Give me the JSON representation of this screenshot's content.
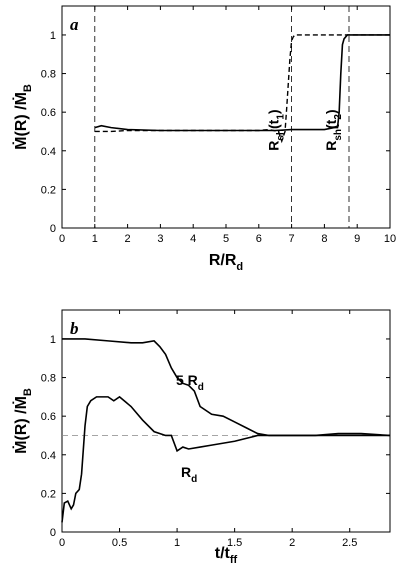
{
  "chart_data": [
    {
      "type": "line",
      "panel_label": "a",
      "xlabel": "R/R",
      "xlabel_sub": "d",
      "ylabel": "Ṁ(R) /Ṁ",
      "ylabel_sub": "B",
      "xlim": [
        0,
        10
      ],
      "ylim": [
        0,
        1.15
      ],
      "xticks": [
        "0",
        "1",
        "2",
        "3",
        "4",
        "5",
        "6",
        "7",
        "8",
        "9",
        "10"
      ],
      "yticks": [
        "0",
        "0.2",
        "0.4",
        "0.6",
        "0.8",
        "1"
      ],
      "series": [
        {
          "style": "solid",
          "x": [
            1.0,
            1.2,
            1.5,
            2.0,
            3.0,
            4.0,
            5.0,
            6.0,
            6.5,
            7.0,
            7.5,
            8.0,
            8.3,
            8.4,
            8.45,
            8.5,
            8.55,
            8.6,
            8.7,
            9.0,
            9.5,
            10.0
          ],
          "y": [
            0.52,
            0.53,
            0.52,
            0.51,
            0.505,
            0.505,
            0.505,
            0.505,
            0.505,
            0.51,
            0.51,
            0.51,
            0.52,
            0.52,
            0.6,
            0.8,
            0.95,
            0.98,
            1.0,
            1.0,
            1.0,
            1.0
          ]
        },
        {
          "style": "dashed",
          "x": [
            1.0,
            1.5,
            2.0,
            3.0,
            4.0,
            5.0,
            6.0,
            6.3,
            6.6,
            6.7,
            6.8,
            6.85,
            6.9,
            6.95,
            7.0,
            7.05,
            7.1,
            7.2,
            8.0,
            9.0,
            10.0
          ],
          "y": [
            0.5,
            0.5,
            0.505,
            0.505,
            0.505,
            0.505,
            0.505,
            0.51,
            0.5,
            0.45,
            0.5,
            0.62,
            0.75,
            0.88,
            0.97,
            0.99,
            1.0,
            1.0,
            1.0,
            1.0,
            1.0
          ]
        }
      ],
      "vertical_lines": [
        1.0,
        7.0,
        8.75
      ],
      "annotations": [
        {
          "text": "R",
          "sub": "sh",
          "arg": "(t",
          "arg_sub": "1",
          "close": ")",
          "x": 6.6,
          "y": 0.4
        },
        {
          "text": "R",
          "sub": "sh",
          "arg": "(t",
          "arg_sub": "2",
          "close": ")",
          "x": 8.35,
          "y": 0.4
        }
      ]
    },
    {
      "type": "line",
      "panel_label": "b",
      "xlabel": "t/t",
      "xlabel_sub": "ff",
      "ylabel": "Ṁ(R) /Ṁ",
      "ylabel_sub": "B",
      "xlim": [
        0,
        2.85
      ],
      "ylim": [
        0,
        1.15
      ],
      "xticks": [
        "0",
        "0.5",
        "1",
        "1.5",
        "2",
        "2.5"
      ],
      "yticks": [
        "0",
        "0.2",
        "0.4",
        "0.6",
        "0.8",
        "1"
      ],
      "reference_line": 0.5,
      "series": [
        {
          "name": "5 R",
          "name_sub": "d",
          "x": [
            0.0,
            0.2,
            0.4,
            0.6,
            0.7,
            0.8,
            0.85,
            0.9,
            0.95,
            1.0,
            1.05,
            1.1,
            1.15,
            1.2,
            1.3,
            1.4,
            1.5,
            1.6,
            1.7,
            1.8,
            2.0,
            2.2,
            2.4,
            2.6,
            2.85
          ],
          "y": [
            1.0,
            1.0,
            0.99,
            0.98,
            0.98,
            0.99,
            0.96,
            0.92,
            0.85,
            0.8,
            0.77,
            0.76,
            0.73,
            0.65,
            0.61,
            0.6,
            0.57,
            0.54,
            0.51,
            0.5,
            0.5,
            0.5,
            0.51,
            0.51,
            0.5
          ]
        },
        {
          "name": "R",
          "name_sub": "d",
          "x": [
            0.0,
            0.02,
            0.05,
            0.08,
            0.1,
            0.12,
            0.15,
            0.17,
            0.2,
            0.22,
            0.25,
            0.3,
            0.4,
            0.45,
            0.5,
            0.6,
            0.7,
            0.8,
            0.9,
            0.95,
            1.0,
            1.05,
            1.1,
            1.2,
            1.3,
            1.5,
            1.7,
            1.8,
            2.0,
            2.2,
            2.4,
            2.6,
            2.85
          ],
          "y": [
            0.05,
            0.15,
            0.16,
            0.12,
            0.14,
            0.2,
            0.22,
            0.3,
            0.55,
            0.65,
            0.68,
            0.7,
            0.7,
            0.68,
            0.7,
            0.65,
            0.58,
            0.52,
            0.5,
            0.5,
            0.42,
            0.44,
            0.43,
            0.44,
            0.45,
            0.47,
            0.5,
            0.5,
            0.5,
            0.5,
            0.5,
            0.5,
            0.5
          ]
        }
      ]
    }
  ]
}
